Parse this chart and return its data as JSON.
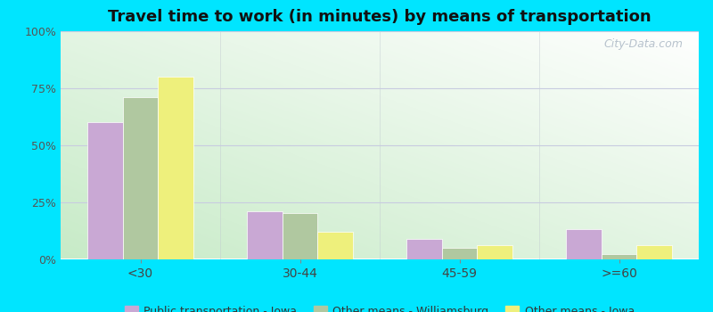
{
  "title": "Travel time to work (in minutes) by means of transportation",
  "categories": [
    "<30",
    "30-44",
    "45-59",
    ">=60"
  ],
  "series": {
    "Public transportation - Iowa": [
      60,
      21,
      9,
      13
    ],
    "Other means - Williamsburg": [
      71,
      20,
      5,
      2
    ],
    "Other means - Iowa": [
      80,
      12,
      6,
      6
    ]
  },
  "colors": {
    "Public transportation - Iowa": "#c9a8d4",
    "Other means - Williamsburg": "#b0c8a0",
    "Other means - Iowa": "#eef07c"
  },
  "ylim": [
    0,
    100
  ],
  "yticks": [
    0,
    25,
    50,
    75,
    100
  ],
  "ytick_labels": [
    "0%",
    "25%",
    "50%",
    "75%",
    "100%"
  ],
  "outer_bg": "#00e5ff",
  "bar_width": 0.22,
  "title_fontsize": 13,
  "watermark": "City-Data.com"
}
